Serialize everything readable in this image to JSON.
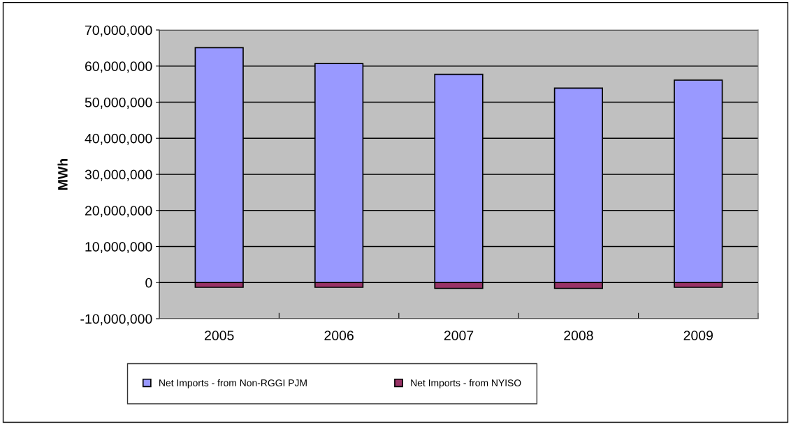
{
  "chart_data": {
    "type": "bar",
    "stacked": true,
    "ylabel": "MWh",
    "categories": [
      "2005",
      "2006",
      "2007",
      "2008",
      "2009"
    ],
    "series": [
      {
        "name": "Net Imports - from Non-RGGI PJM",
        "color": "#9999ff",
        "values": [
          65100000,
          60700000,
          57700000,
          53900000,
          56100000
        ]
      },
      {
        "name": "Net Imports - from NYISO",
        "color": "#993366",
        "values": [
          -1300000,
          -1300000,
          -1600000,
          -1600000,
          -1300000
        ]
      }
    ],
    "ylim": [
      -10000000,
      70000000
    ],
    "yticks": [
      {
        "value": -10000000,
        "label": "-10,000,000"
      },
      {
        "value": 0,
        "label": "0"
      },
      {
        "value": 10000000,
        "label": "10,000,000"
      },
      {
        "value": 20000000,
        "label": "20,000,000"
      },
      {
        "value": 30000000,
        "label": "30,000,000"
      },
      {
        "value": 40000000,
        "label": "40,000,000"
      },
      {
        "value": 50000000,
        "label": "50,000,000"
      },
      {
        "value": 60000000,
        "label": "60,000,000"
      },
      {
        "value": 70000000,
        "label": "70,000,000"
      }
    ],
    "grid": "y",
    "legend": "bottom"
  }
}
